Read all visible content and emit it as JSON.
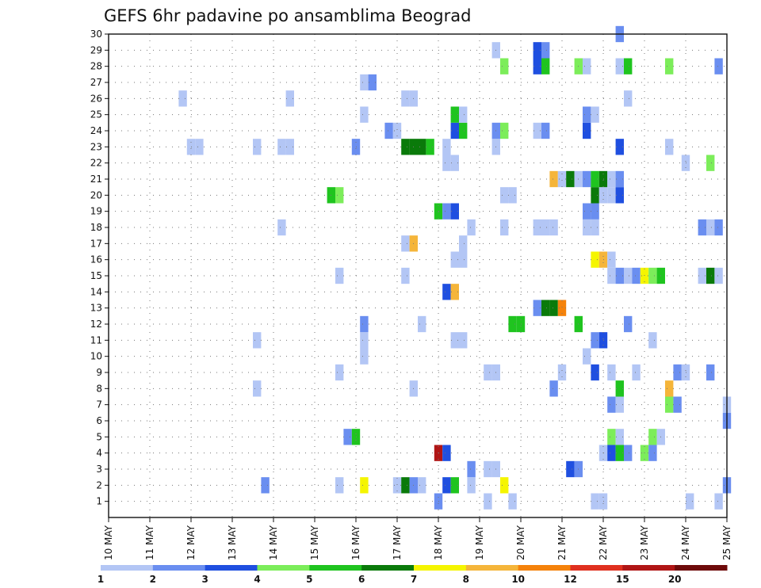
{
  "chart_data": {
    "type": "heatmap",
    "title": "GEFS 6hr padavine po ansamblima Beograd",
    "x_tick_labels": [
      "10 MAY",
      "11 MAY",
      "12 MAY",
      "13 MAY",
      "14 MAY",
      "15 MAY",
      "16 MAY",
      "17 MAY",
      "18 MAY",
      "19 MAY",
      "20 MAY",
      "21 MAY",
      "22 MAY",
      "23 MAY",
      "24 MAY",
      "25 MAY"
    ],
    "x_range_days": [
      10,
      25
    ],
    "y_range": [
      0,
      30
    ],
    "y_ticks": [
      1,
      2,
      3,
      4,
      5,
      6,
      7,
      8,
      9,
      10,
      11,
      12,
      13,
      14,
      15,
      16,
      17,
      18,
      19,
      20,
      21,
      22,
      23,
      24,
      25,
      26,
      27,
      28,
      29,
      30
    ],
    "grid": true,
    "legend": {
      "placement": "bottom",
      "labels": [
        "1",
        "2",
        "3",
        "4",
        "5",
        "6",
        "7",
        "8",
        "10",
        "12",
        "15",
        "20"
      ],
      "colors": [
        "#b3c6f5",
        "#6a8ef0",
        "#1f4fe0",
        "#7ced5a",
        "#1fc41f",
        "#0a7a0a",
        "#f5f500",
        "#f5b53a",
        "#f5820a",
        "#e0301f",
        "#b01515",
        "#6e0a0a"
      ]
    },
    "cells": [
      {
        "x": 18.0,
        "y": 1,
        "c": 2
      },
      {
        "x": 19.2,
        "y": 1,
        "c": 1
      },
      {
        "x": 21.8,
        "y": 1,
        "c": 1
      },
      {
        "x": 22.0,
        "y": 1,
        "c": 1
      },
      {
        "x": 24.1,
        "y": 1,
        "c": 1
      },
      {
        "x": 24.8,
        "y": 1,
        "c": 1
      },
      {
        "x": 19.8,
        "y": 1,
        "c": 1
      },
      {
        "x": 18.8,
        "y": 2,
        "c": 1
      },
      {
        "x": 13.8,
        "y": 2,
        "c": 2
      },
      {
        "x": 15.6,
        "y": 2,
        "c": 1
      },
      {
        "x": 16.2,
        "y": 2,
        "c": 7
      },
      {
        "x": 17.0,
        "y": 2,
        "c": 1
      },
      {
        "x": 17.2,
        "y": 2,
        "c": 6
      },
      {
        "x": 17.4,
        "y": 2,
        "c": 2
      },
      {
        "x": 17.6,
        "y": 2,
        "c": 1
      },
      {
        "x": 18.2,
        "y": 2,
        "c": 3
      },
      {
        "x": 18.4,
        "y": 2,
        "c": 5
      },
      {
        "x": 19.6,
        "y": 2,
        "c": 7
      },
      {
        "x": 25.0,
        "y": 2,
        "c": 2
      },
      {
        "x": 18.8,
        "y": 3,
        "c": 2
      },
      {
        "x": 19.2,
        "y": 3,
        "c": 1
      },
      {
        "x": 19.4,
        "y": 3,
        "c": 1
      },
      {
        "x": 21.2,
        "y": 3,
        "c": 3
      },
      {
        "x": 21.4,
        "y": 3,
        "c": 2
      },
      {
        "x": 18.0,
        "y": 4,
        "c": 11
      },
      {
        "x": 18.2,
        "y": 4,
        "c": 3
      },
      {
        "x": 22.0,
        "y": 4,
        "c": 1
      },
      {
        "x": 22.2,
        "y": 4,
        "c": 3
      },
      {
        "x": 22.4,
        "y": 4,
        "c": 5
      },
      {
        "x": 22.6,
        "y": 4,
        "c": 2
      },
      {
        "x": 23.0,
        "y": 4,
        "c": 4
      },
      {
        "x": 23.2,
        "y": 4,
        "c": 2
      },
      {
        "x": 15.8,
        "y": 5,
        "c": 2
      },
      {
        "x": 16.0,
        "y": 5,
        "c": 5
      },
      {
        "x": 22.2,
        "y": 5,
        "c": 4
      },
      {
        "x": 22.4,
        "y": 5,
        "c": 1
      },
      {
        "x": 23.2,
        "y": 5,
        "c": 4
      },
      {
        "x": 23.4,
        "y": 5,
        "c": 1
      },
      {
        "x": 25.0,
        "y": 6,
        "c": 2
      },
      {
        "x": 22.2,
        "y": 7,
        "c": 2
      },
      {
        "x": 22.4,
        "y": 7,
        "c": 1
      },
      {
        "x": 23.6,
        "y": 7,
        "c": 4
      },
      {
        "x": 23.8,
        "y": 7,
        "c": 2
      },
      {
        "x": 25.0,
        "y": 7,
        "c": 1
      },
      {
        "x": 13.6,
        "y": 8,
        "c": 1
      },
      {
        "x": 17.4,
        "y": 8,
        "c": 1
      },
      {
        "x": 20.8,
        "y": 8,
        "c": 2
      },
      {
        "x": 22.4,
        "y": 8,
        "c": 5
      },
      {
        "x": 23.6,
        "y": 8,
        "c": 8
      },
      {
        "x": 15.6,
        "y": 9,
        "c": 1
      },
      {
        "x": 19.2,
        "y": 9,
        "c": 1
      },
      {
        "x": 19.4,
        "y": 9,
        "c": 1
      },
      {
        "x": 21.0,
        "y": 9,
        "c": 1
      },
      {
        "x": 21.8,
        "y": 9,
        "c": 3
      },
      {
        "x": 22.2,
        "y": 9,
        "c": 1
      },
      {
        "x": 22.8,
        "y": 9,
        "c": 1
      },
      {
        "x": 23.8,
        "y": 9,
        "c": 2
      },
      {
        "x": 24.0,
        "y": 9,
        "c": 1
      },
      {
        "x": 24.6,
        "y": 9,
        "c": 2
      },
      {
        "x": 16.2,
        "y": 10,
        "c": 1
      },
      {
        "x": 21.6,
        "y": 10,
        "c": 1
      },
      {
        "x": 13.6,
        "y": 11,
        "c": 1
      },
      {
        "x": 16.2,
        "y": 11,
        "c": 1
      },
      {
        "x": 18.4,
        "y": 11,
        "c": 1
      },
      {
        "x": 18.6,
        "y": 11,
        "c": 1
      },
      {
        "x": 21.8,
        "y": 11,
        "c": 2
      },
      {
        "x": 22.0,
        "y": 11,
        "c": 3
      },
      {
        "x": 23.2,
        "y": 11,
        "c": 1
      },
      {
        "x": 16.2,
        "y": 12,
        "c": 2
      },
      {
        "x": 17.6,
        "y": 12,
        "c": 1
      },
      {
        "x": 19.8,
        "y": 12,
        "c": 5
      },
      {
        "x": 20.0,
        "y": 12,
        "c": 5
      },
      {
        "x": 21.4,
        "y": 12,
        "c": 5
      },
      {
        "x": 22.6,
        "y": 12,
        "c": 2
      },
      {
        "x": 20.4,
        "y": 13,
        "c": 2
      },
      {
        "x": 20.6,
        "y": 13,
        "c": 6
      },
      {
        "x": 20.8,
        "y": 13,
        "c": 6
      },
      {
        "x": 21.0,
        "y": 13,
        "c": 9
      },
      {
        "x": 18.2,
        "y": 14,
        "c": 3
      },
      {
        "x": 18.4,
        "y": 14,
        "c": 8
      },
      {
        "x": 15.6,
        "y": 15,
        "c": 1
      },
      {
        "x": 17.2,
        "y": 15,
        "c": 1
      },
      {
        "x": 22.2,
        "y": 15,
        "c": 1
      },
      {
        "x": 22.4,
        "y": 15,
        "c": 2
      },
      {
        "x": 22.6,
        "y": 15,
        "c": 1
      },
      {
        "x": 22.8,
        "y": 15,
        "c": 2
      },
      {
        "x": 23.0,
        "y": 15,
        "c": 7
      },
      {
        "x": 23.2,
        "y": 15,
        "c": 4
      },
      {
        "x": 23.4,
        "y": 15,
        "c": 5
      },
      {
        "x": 24.4,
        "y": 15,
        "c": 1
      },
      {
        "x": 24.6,
        "y": 15,
        "c": 6
      },
      {
        "x": 24.8,
        "y": 15,
        "c": 1
      },
      {
        "x": 18.4,
        "y": 16,
        "c": 1
      },
      {
        "x": 18.6,
        "y": 16,
        "c": 1
      },
      {
        "x": 21.8,
        "y": 16,
        "c": 7
      },
      {
        "x": 22.0,
        "y": 16,
        "c": 8
      },
      {
        "x": 22.2,
        "y": 16,
        "c": 1
      },
      {
        "x": 17.2,
        "y": 17,
        "c": 1
      },
      {
        "x": 17.4,
        "y": 17,
        "c": 8
      },
      {
        "x": 18.6,
        "y": 17,
        "c": 1
      },
      {
        "x": 14.2,
        "y": 18,
        "c": 1
      },
      {
        "x": 18.8,
        "y": 18,
        "c": 1
      },
      {
        "x": 19.6,
        "y": 18,
        "c": 1
      },
      {
        "x": 20.4,
        "y": 18,
        "c": 1
      },
      {
        "x": 20.6,
        "y": 18,
        "c": 1
      },
      {
        "x": 20.8,
        "y": 18,
        "c": 1
      },
      {
        "x": 21.6,
        "y": 18,
        "c": 1
      },
      {
        "x": 21.8,
        "y": 18,
        "c": 1
      },
      {
        "x": 24.4,
        "y": 18,
        "c": 2
      },
      {
        "x": 24.6,
        "y": 18,
        "c": 1
      },
      {
        "x": 24.8,
        "y": 18,
        "c": 2
      },
      {
        "x": 18.0,
        "y": 19,
        "c": 5
      },
      {
        "x": 18.2,
        "y": 19,
        "c": 2
      },
      {
        "x": 18.4,
        "y": 19,
        "c": 3
      },
      {
        "x": 21.6,
        "y": 19,
        "c": 2
      },
      {
        "x": 21.8,
        "y": 19,
        "c": 2
      },
      {
        "x": 15.4,
        "y": 20,
        "c": 5
      },
      {
        "x": 15.6,
        "y": 20,
        "c": 4
      },
      {
        "x": 19.6,
        "y": 20,
        "c": 1
      },
      {
        "x": 19.8,
        "y": 20,
        "c": 1
      },
      {
        "x": 21.8,
        "y": 20,
        "c": 6
      },
      {
        "x": 22.0,
        "y": 20,
        "c": 1
      },
      {
        "x": 22.2,
        "y": 20,
        "c": 1
      },
      {
        "x": 22.4,
        "y": 20,
        "c": 3
      },
      {
        "x": 20.8,
        "y": 21,
        "c": 8
      },
      {
        "x": 21.0,
        "y": 21,
        "c": 1
      },
      {
        "x": 21.2,
        "y": 21,
        "c": 6
      },
      {
        "x": 21.4,
        "y": 21,
        "c": 1
      },
      {
        "x": 21.6,
        "y": 21,
        "c": 2
      },
      {
        "x": 21.8,
        "y": 21,
        "c": 5
      },
      {
        "x": 22.0,
        "y": 21,
        "c": 6
      },
      {
        "x": 22.2,
        "y": 21,
        "c": 1
      },
      {
        "x": 22.4,
        "y": 21,
        "c": 2
      },
      {
        "x": 18.2,
        "y": 22,
        "c": 1
      },
      {
        "x": 18.4,
        "y": 22,
        "c": 1
      },
      {
        "x": 24.0,
        "y": 22,
        "c": 1
      },
      {
        "x": 24.6,
        "y": 22,
        "c": 4
      },
      {
        "x": 12.0,
        "y": 23,
        "c": 1
      },
      {
        "x": 12.2,
        "y": 23,
        "c": 1
      },
      {
        "x": 13.6,
        "y": 23,
        "c": 1
      },
      {
        "x": 14.2,
        "y": 23,
        "c": 1
      },
      {
        "x": 14.4,
        "y": 23,
        "c": 1
      },
      {
        "x": 16.0,
        "y": 23,
        "c": 2
      },
      {
        "x": 17.2,
        "y": 23,
        "c": 6
      },
      {
        "x": 17.4,
        "y": 23,
        "c": 6
      },
      {
        "x": 17.6,
        "y": 23,
        "c": 6
      },
      {
        "x": 17.8,
        "y": 23,
        "c": 5
      },
      {
        "x": 18.2,
        "y": 23,
        "c": 1
      },
      {
        "x": 19.4,
        "y": 23,
        "c": 1
      },
      {
        "x": 22.4,
        "y": 23,
        "c": 3
      },
      {
        "x": 23.6,
        "y": 23,
        "c": 1
      },
      {
        "x": 16.8,
        "y": 24,
        "c": 2
      },
      {
        "x": 17.0,
        "y": 24,
        "c": 1
      },
      {
        "x": 18.4,
        "y": 24,
        "c": 3
      },
      {
        "x": 18.6,
        "y": 24,
        "c": 5
      },
      {
        "x": 19.4,
        "y": 24,
        "c": 2
      },
      {
        "x": 19.6,
        "y": 24,
        "c": 4
      },
      {
        "x": 20.4,
        "y": 24,
        "c": 1
      },
      {
        "x": 20.6,
        "y": 24,
        "c": 2
      },
      {
        "x": 21.6,
        "y": 24,
        "c": 3
      },
      {
        "x": 16.2,
        "y": 25,
        "c": 1
      },
      {
        "x": 18.4,
        "y": 25,
        "c": 5
      },
      {
        "x": 18.6,
        "y": 25,
        "c": 1
      },
      {
        "x": 21.6,
        "y": 25,
        "c": 2
      },
      {
        "x": 21.8,
        "y": 25,
        "c": 1
      },
      {
        "x": 11.8,
        "y": 26,
        "c": 1
      },
      {
        "x": 14.4,
        "y": 26,
        "c": 1
      },
      {
        "x": 17.2,
        "y": 26,
        "c": 1
      },
      {
        "x": 17.4,
        "y": 26,
        "c": 1
      },
      {
        "x": 22.6,
        "y": 26,
        "c": 1
      },
      {
        "x": 16.2,
        "y": 27,
        "c": 1
      },
      {
        "x": 16.4,
        "y": 27,
        "c": 2
      },
      {
        "x": 19.6,
        "y": 28,
        "c": 4
      },
      {
        "x": 20.4,
        "y": 28,
        "c": 3
      },
      {
        "x": 20.6,
        "y": 28,
        "c": 5
      },
      {
        "x": 21.4,
        "y": 28,
        "c": 4
      },
      {
        "x": 21.6,
        "y": 28,
        "c": 1
      },
      {
        "x": 22.4,
        "y": 28,
        "c": 1
      },
      {
        "x": 22.6,
        "y": 28,
        "c": 5
      },
      {
        "x": 23.6,
        "y": 28,
        "c": 4
      },
      {
        "x": 24.8,
        "y": 28,
        "c": 2
      },
      {
        "x": 19.4,
        "y": 29,
        "c": 1
      },
      {
        "x": 20.4,
        "y": 29,
        "c": 3
      },
      {
        "x": 20.6,
        "y": 29,
        "c": 2
      },
      {
        "x": 22.4,
        "y": 30,
        "c": 2
      }
    ]
  }
}
